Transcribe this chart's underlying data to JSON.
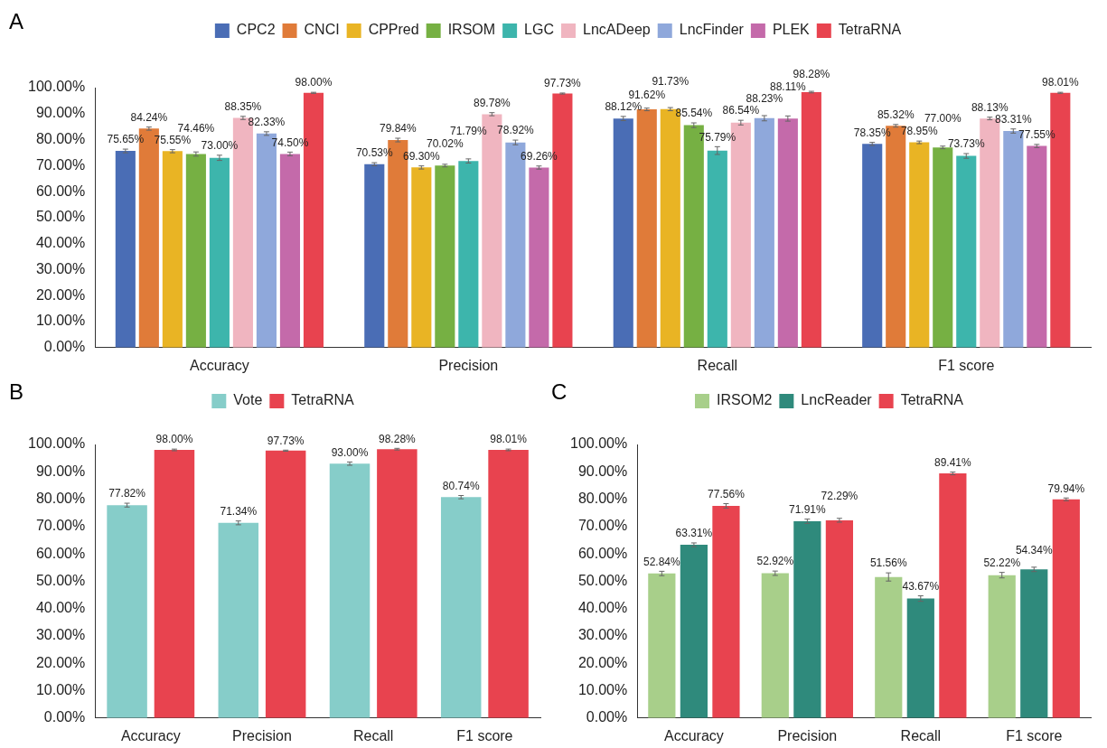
{
  "chart_data": [
    {
      "type": "bar",
      "annotations": [
        "A"
      ],
      "categories": [
        "Accuracy",
        "Precision",
        "Recall",
        "F1 score"
      ],
      "ylim": [
        0,
        100
      ],
      "yticks": [
        {
          "value": 0,
          "label": "0.00%"
        },
        {
          "value": 10,
          "label": "10.00%"
        },
        {
          "value": 20,
          "label": "20.00%"
        },
        {
          "value": 30,
          "label": "30.00%"
        },
        {
          "value": 40,
          "label": "40.00%"
        },
        {
          "value": 50,
          "label": "50.00%"
        },
        {
          "value": 60,
          "label": "60.00%"
        },
        {
          "value": 70,
          "label": "70.00%"
        },
        {
          "value": 80,
          "label": "80.00%"
        },
        {
          "value": 90,
          "label": "90.00%"
        },
        {
          "value": 100,
          "label": "100.00%"
        }
      ],
      "grid": false,
      "legend": "top",
      "series": [
        {
          "name": "CPC2",
          "color": "#4a6db5",
          "values": [
            75.65,
            70.53,
            88.12,
            78.35
          ],
          "errors": [
            0.7,
            0.6,
            0.8,
            0.6
          ],
          "value_labels": [
            "75.65%",
            "70.53%",
            "88.12%",
            "78.35%"
          ]
        },
        {
          "name": "CNCI",
          "color": "#e07b39",
          "values": [
            84.24,
            79.84,
            91.62,
            85.32
          ],
          "errors": [
            0.6,
            0.7,
            0.5,
            0.5
          ],
          "value_labels": [
            "84.24%",
            "79.84%",
            "91.62%",
            "85.32%"
          ]
        },
        {
          "name": "CPPred",
          "color": "#e9b424",
          "values": [
            75.55,
            69.3,
            91.73,
            78.95
          ],
          "errors": [
            0.6,
            0.6,
            0.6,
            0.5
          ],
          "value_labels": [
            "75.55%",
            "69.30%",
            "91.73%",
            "78.95%"
          ]
        },
        {
          "name": "IRSOM",
          "color": "#76b043",
          "values": [
            74.46,
            70.02,
            85.54,
            77.0
          ],
          "errors": [
            0.8,
            0.5,
            0.9,
            0.5
          ],
          "value_labels": [
            "74.46%",
            "70.02%",
            "85.54%",
            "77.00%"
          ]
        },
        {
          "name": "LGC",
          "color": "#3db5ac",
          "values": [
            73.0,
            71.79,
            75.79,
            73.73
          ],
          "errors": [
            1.0,
            0.8,
            1.5,
            0.9
          ],
          "value_labels": [
            "73.00%",
            "71.79%",
            "75.79%",
            "73.73%"
          ]
        },
        {
          "name": "LncADeep",
          "color": "#f0b5c0",
          "values": [
            88.35,
            89.78,
            86.54,
            88.13
          ],
          "errors": [
            0.6,
            0.6,
            0.9,
            0.5
          ],
          "value_labels": [
            "88.35%",
            "89.78%",
            "86.54%",
            "88.13%"
          ]
        },
        {
          "name": "LncFinder",
          "color": "#8fa8db",
          "values": [
            82.33,
            78.92,
            88.23,
            83.31
          ],
          "errors": [
            0.7,
            0.9,
            1.0,
            0.8
          ],
          "value_labels": [
            "82.33%",
            "78.92%",
            "88.23%",
            "83.31%"
          ]
        },
        {
          "name": "PLEK",
          "color": "#c46aaa",
          "values": [
            74.5,
            69.26,
            88.11,
            77.55
          ],
          "errors": [
            0.7,
            0.6,
            1.0,
            0.6
          ],
          "value_labels": [
            "74.50%",
            "69.26%",
            "88.11%",
            "77.55%"
          ]
        },
        {
          "name": "TetraRNA",
          "color": "#e8434f",
          "values": [
            98.0,
            97.73,
            98.28,
            98.01
          ],
          "errors": [
            0.2,
            0.2,
            0.3,
            0.2
          ],
          "value_labels": [
            "98.00%",
            "97.73%",
            "98.28%",
            "98.01%"
          ]
        }
      ]
    },
    {
      "type": "bar",
      "annotations": [
        "B"
      ],
      "categories": [
        "Accuracy",
        "Precision",
        "Recall",
        "F1 score"
      ],
      "ylim": [
        0,
        100
      ],
      "yticks": [
        {
          "value": 0,
          "label": "0.00%"
        },
        {
          "value": 10,
          "label": "10.00%"
        },
        {
          "value": 20,
          "label": "20.00%"
        },
        {
          "value": 30,
          "label": "30.00%"
        },
        {
          "value": 40,
          "label": "40.00%"
        },
        {
          "value": 50,
          "label": "50.00%"
        },
        {
          "value": 60,
          "label": "60.00%"
        },
        {
          "value": 70,
          "label": "70.00%"
        },
        {
          "value": 80,
          "label": "80.00%"
        },
        {
          "value": 90,
          "label": "90.00%"
        },
        {
          "value": 100,
          "label": "100.00%"
        }
      ],
      "grid": false,
      "legend": "top",
      "series": [
        {
          "name": "Vote",
          "color": "#86cdc9",
          "values": [
            77.82,
            71.34,
            93.0,
            80.74
          ],
          "errors": [
            0.7,
            0.7,
            0.6,
            0.6
          ],
          "value_labels": [
            "77.82%",
            "71.34%",
            "93.00%",
            "80.74%"
          ]
        },
        {
          "name": "TetraRNA",
          "color": "#e8434f",
          "values": [
            98.0,
            97.73,
            98.28,
            98.01
          ],
          "errors": [
            0.3,
            0.2,
            0.3,
            0.3
          ],
          "value_labels": [
            "98.00%",
            "97.73%",
            "98.28%",
            "98.01%"
          ]
        }
      ]
    },
    {
      "type": "bar",
      "annotations": [
        "C"
      ],
      "categories": [
        "Accuracy",
        "Precision",
        "Recall",
        "F1 score"
      ],
      "ylim": [
        0,
        100
      ],
      "yticks": [
        {
          "value": 0,
          "label": "0.00%"
        },
        {
          "value": 10,
          "label": "10.00%"
        },
        {
          "value": 20,
          "label": "20.00%"
        },
        {
          "value": 30,
          "label": "30.00%"
        },
        {
          "value": 40,
          "label": "40.00%"
        },
        {
          "value": 50,
          "label": "50.00%"
        },
        {
          "value": 60,
          "label": "60.00%"
        },
        {
          "value": 70,
          "label": "70.00%"
        },
        {
          "value": 80,
          "label": "80.00%"
        },
        {
          "value": 90,
          "label": "90.00%"
        },
        {
          "value": 100,
          "label": "100.00%"
        }
      ],
      "grid": false,
      "legend": "top",
      "series": [
        {
          "name": "IRSOM2",
          "color": "#a8cf8a",
          "values": [
            52.84,
            52.92,
            51.56,
            52.22
          ],
          "errors": [
            0.8,
            0.8,
            1.5,
            1.0
          ],
          "value_labels": [
            "52.84%",
            "52.92%",
            "51.56%",
            "52.22%"
          ]
        },
        {
          "name": "LncReader",
          "color": "#2f8a7c",
          "values": [
            63.31,
            71.91,
            43.67,
            54.34
          ],
          "errors": [
            0.7,
            0.8,
            1.0,
            0.8
          ],
          "value_labels": [
            "63.31%",
            "71.91%",
            "43.67%",
            "54.34%"
          ]
        },
        {
          "name": "TetraRNA",
          "color": "#e8434f",
          "values": [
            77.56,
            72.29,
            89.41,
            79.94
          ],
          "errors": [
            0.8,
            0.7,
            0.5,
            0.5
          ],
          "value_labels": [
            "77.56%",
            "72.29%",
            "89.41%",
            "79.94%"
          ]
        }
      ]
    }
  ]
}
